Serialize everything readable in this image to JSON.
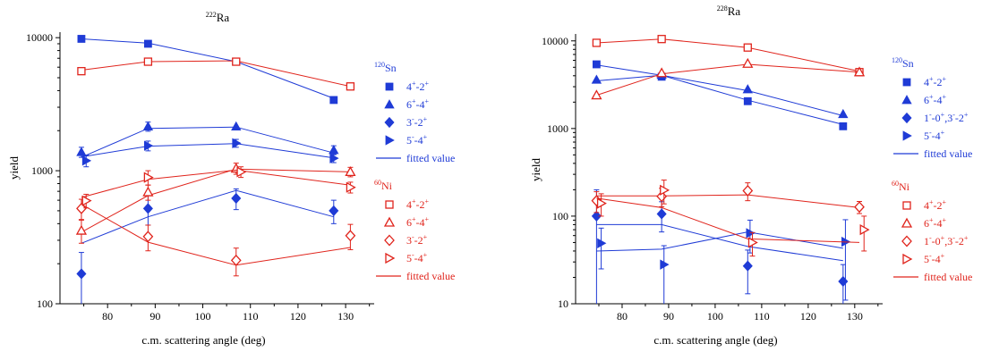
{
  "colors": {
    "blue": "#1f3bd6",
    "red": "#e0241c",
    "axis": "#000000"
  },
  "chart_data": [
    {
      "type": "scatter",
      "title": "222Ra",
      "title_parts": {
        "sup": "222",
        "base": "Ra"
      },
      "xlabel": "c.m. scattering angle (deg)",
      "ylabel": "yield",
      "yscale": "log",
      "xlim": [
        70,
        136
      ],
      "ylim": [
        100,
        11000
      ],
      "xticks": [
        80,
        90,
        100,
        110,
        120,
        130
      ],
      "xtick_labels": [
        "80",
        "90",
        "100",
        "110",
        "120",
        "130"
      ],
      "yticks": [
        100,
        1000,
        10000
      ],
      "ytick_labels": [
        "100",
        "1000",
        "10000"
      ],
      "grid": false,
      "legend_position": "right",
      "legend_groups": [
        {
          "header_sup": "120",
          "header_base": "Sn",
          "color": "blue",
          "entries": [
            {
              "marker": "square-filled",
              "main": "4",
              "s1": "+",
              "mid": "-2",
              "s2": "+",
              "tail": "",
              "s3": ""
            },
            {
              "marker": "triangle-up-filled",
              "main": "6",
              "s1": "+",
              "mid": "-4",
              "s2": "+",
              "tail": "",
              "s3": ""
            },
            {
              "marker": "diamond-filled",
              "main": "3",
              "s1": "-",
              "mid": "-2",
              "s2": "+",
              "tail": "",
              "s3": ""
            },
            {
              "marker": "triangle-right-filled",
              "main": "5",
              "s1": "-",
              "mid": "-4",
              "s2": "+",
              "tail": "",
              "s3": ""
            }
          ],
          "fit_label": "fitted value"
        },
        {
          "header_sup": "60",
          "header_base": "Ni",
          "color": "red",
          "entries": [
            {
              "marker": "square-open",
              "main": "4",
              "s1": "+",
              "mid": "-2",
              "s2": "+",
              "tail": "",
              "s3": ""
            },
            {
              "marker": "triangle-up-open",
              "main": "6",
              "s1": "+",
              "mid": "-4",
              "s2": "+",
              "tail": "",
              "s3": ""
            },
            {
              "marker": "diamond-open",
              "main": "3",
              "s1": "-",
              "mid": "-2",
              "s2": "+",
              "tail": "",
              "s3": ""
            },
            {
              "marker": "triangle-right-open",
              "main": "5",
              "s1": "-",
              "mid": "-4",
              "s2": "+",
              "tail": "",
              "s3": ""
            }
          ],
          "fit_label": "fitted value"
        }
      ],
      "series": [
        {
          "group": "120Sn",
          "transition": "4+-2+",
          "color": "blue",
          "marker": "square-filled",
          "points": [
            {
              "x": 74.5,
              "y": 9800
            },
            {
              "x": 88.5,
              "y": 9000
            },
            {
              "x": 107,
              "y": 6600
            },
            {
              "x": 127.5,
              "y": 3400
            }
          ],
          "fit": [
            [
              74.5,
              9800
            ],
            [
              88.5,
              9100
            ],
            [
              107,
              6600
            ],
            [
              127.5,
              3500
            ]
          ]
        },
        {
          "group": "120Sn",
          "transition": "6+-4+",
          "color": "blue",
          "marker": "triangle-up-filled",
          "points": [
            {
              "x": 74.5,
              "y": 1380,
              "err": 120
            },
            {
              "x": 88.5,
              "y": 2150,
              "err": 170
            },
            {
              "x": 107,
              "y": 2150
            },
            {
              "x": 127.5,
              "y": 1430,
              "err": 110
            }
          ],
          "fit": [
            [
              74.5,
              1260
            ],
            [
              88.5,
              2080
            ],
            [
              107,
              2130
            ],
            [
              127.5,
              1360
            ]
          ]
        },
        {
          "group": "120Sn",
          "transition": "3--2+",
          "color": "blue",
          "marker": "diamond-filled",
          "points": [
            {
              "x": 74.5,
              "y": 168,
              "err": 75
            },
            {
              "x": 88.5,
              "y": 520,
              "err": 130
            },
            {
              "x": 107,
              "y": 620,
              "err": 110
            },
            {
              "x": 127.5,
              "y": 500,
              "err": 100
            }
          ],
          "fit": [
            [
              74.5,
              285
            ],
            [
              88.5,
              450
            ],
            [
              107,
              710
            ],
            [
              127.5,
              450
            ]
          ]
        },
        {
          "group": "120Sn",
          "transition": "5--4+",
          "color": "blue",
          "marker": "triangle-right-filled",
          "points": [
            {
              "x": 75.5,
              "y": 1190,
              "err": 120
            },
            {
              "x": 88.5,
              "y": 1540,
              "err": 130
            },
            {
              "x": 107,
              "y": 1610,
              "err": 110
            },
            {
              "x": 127.5,
              "y": 1240,
              "err": 90
            }
          ],
          "fit": [
            [
              74.5,
              1270
            ],
            [
              88.5,
              1530
            ],
            [
              107,
              1600
            ],
            [
              127.5,
              1250
            ]
          ]
        },
        {
          "group": "60Ni",
          "transition": "4+-2+",
          "color": "red",
          "marker": "square-open",
          "points": [
            {
              "x": 74.5,
              "y": 5600
            },
            {
              "x": 88.5,
              "y": 6600
            },
            {
              "x": 107,
              "y": 6600
            },
            {
              "x": 131,
              "y": 4300
            }
          ],
          "fit": [
            [
              74.5,
              5700
            ],
            [
              88.5,
              6600
            ],
            [
              107,
              6700
            ],
            [
              131,
              4300
            ]
          ]
        },
        {
          "group": "60Ni",
          "transition": "6+-4+",
          "color": "red",
          "marker": "triangle-up-open",
          "points": [
            {
              "x": 74.5,
              "y": 355,
              "err": 70
            },
            {
              "x": 88.5,
              "y": 690,
              "err": 90
            },
            {
              "x": 107,
              "y": 1040,
              "err": 100
            },
            {
              "x": 131,
              "y": 980,
              "err": 80
            }
          ],
          "fit": [
            [
              74.5,
              345
            ],
            [
              88.5,
              650
            ],
            [
              107,
              1030
            ],
            [
              131,
              980
            ]
          ]
        },
        {
          "group": "60Ni",
          "transition": "3--2+",
          "color": "red",
          "marker": "diamond-open",
          "points": [
            {
              "x": 74.5,
              "y": 520,
              "err": 90
            },
            {
              "x": 88.5,
              "y": 320,
              "err": 70
            },
            {
              "x": 107,
              "y": 212,
              "err": 50
            },
            {
              "x": 131,
              "y": 325,
              "err": 70
            }
          ],
          "fit": [
            [
              74.5,
              560
            ],
            [
              88.5,
              290
            ],
            [
              107,
              195
            ],
            [
              131,
              265
            ]
          ]
        },
        {
          "group": "60Ni",
          "transition": "5--4+",
          "color": "red",
          "marker": "triangle-right-open",
          "points": [
            {
              "x": 75.5,
              "y": 595,
              "err": 70
            },
            {
              "x": 88.5,
              "y": 890,
              "err": 110
            },
            {
              "x": 108,
              "y": 980,
              "err": 90
            },
            {
              "x": 131,
              "y": 750,
              "err": 70
            }
          ],
          "fit": [
            [
              74.5,
              630
            ],
            [
              88.5,
              860
            ],
            [
              107,
              1010
            ],
            [
              131,
              780
            ]
          ]
        }
      ]
    },
    {
      "type": "scatter",
      "title": "228Ra",
      "title_parts": {
        "sup": "228",
        "base": "Ra"
      },
      "xlabel": "c.m. scattering angle (deg)",
      "ylabel": "yield",
      "yscale": "log",
      "xlim": [
        70,
        136
      ],
      "ylim": [
        10,
        12000
      ],
      "xticks": [
        80,
        90,
        100,
        110,
        120,
        130
      ],
      "xtick_labels": [
        "80",
        "90",
        "100",
        "110",
        "120",
        "130"
      ],
      "yticks": [
        10,
        100,
        1000,
        10000
      ],
      "ytick_labels": [
        "10",
        "100",
        "1000",
        "10000"
      ],
      "grid": false,
      "legend_position": "right",
      "legend_groups": [
        {
          "header_sup": "120",
          "header_base": "Sn",
          "color": "blue",
          "entries": [
            {
              "marker": "square-filled",
              "main": "4",
              "s1": "+",
              "mid": "-2",
              "s2": "+",
              "tail": "",
              "s3": ""
            },
            {
              "marker": "triangle-up-filled",
              "main": "6",
              "s1": "+",
              "mid": "-4",
              "s2": "+",
              "tail": "",
              "s3": ""
            },
            {
              "marker": "diamond-filled",
              "main": "1",
              "s1": "-",
              "mid": "-0",
              "s2": "+",
              "tail": ",3",
              "s3": "-",
              "tail2": "-2",
              "s4": "+"
            },
            {
              "marker": "triangle-right-filled",
              "main": "5",
              "s1": "-",
              "mid": "-4",
              "s2": "+",
              "tail": "",
              "s3": ""
            }
          ],
          "fit_label": "fitted value"
        },
        {
          "header_sup": "60",
          "header_base": "Ni",
          "color": "red",
          "entries": [
            {
              "marker": "square-open",
              "main": "4",
              "s1": "+",
              "mid": "-2",
              "s2": "+",
              "tail": "",
              "s3": ""
            },
            {
              "marker": "triangle-up-open",
              "main": "6",
              "s1": "+",
              "mid": "-4",
              "s2": "+",
              "tail": "",
              "s3": ""
            },
            {
              "marker": "diamond-open",
              "main": "1",
              "s1": "-",
              "mid": "-0",
              "s2": "+",
              "tail": ",3",
              "s3": "-",
              "tail2": "-2",
              "s4": "+"
            },
            {
              "marker": "triangle-right-open",
              "main": "5",
              "s1": "-",
              "mid": "-4",
              "s2": "+",
              "tail": "",
              "s3": ""
            }
          ],
          "fit_label": "fitted value"
        }
      ],
      "series": [
        {
          "group": "120Sn",
          "transition": "4+-2+",
          "color": "blue",
          "marker": "square-filled",
          "points": [
            {
              "x": 74.5,
              "y": 5400
            },
            {
              "x": 88.5,
              "y": 3900
            },
            {
              "x": 107,
              "y": 2050
            },
            {
              "x": 127.5,
              "y": 1060
            }
          ],
          "fit": [
            [
              74.5,
              5300
            ],
            [
              88.5,
              4050
            ],
            [
              107,
              2100
            ],
            [
              127.5,
              1110
            ]
          ]
        },
        {
          "group": "120Sn",
          "transition": "6+-4+",
          "color": "blue",
          "marker": "triangle-up-filled",
          "points": [
            {
              "x": 74.5,
              "y": 3600
            },
            {
              "x": 88.5,
              "y": 4100
            },
            {
              "x": 107,
              "y": 2800
            },
            {
              "x": 127.5,
              "y": 1460
            }
          ],
          "fit": [
            [
              74.5,
              3500
            ],
            [
              88.5,
              4050
            ],
            [
              107,
              2700
            ],
            [
              127.5,
              1400
            ]
          ]
        },
        {
          "group": "120Sn",
          "transition": "1--0+,3--2+",
          "color": "blue",
          "marker": "diamond-filled",
          "points": [
            {
              "x": 74.5,
              "y": 100,
              "err": 100
            },
            {
              "x": 88.5,
              "y": 106,
              "err": 40
            },
            {
              "x": 107,
              "y": 27,
              "err": 14
            },
            {
              "x": 127.5,
              "y": 18,
              "err": 10
            }
          ],
          "fit": [
            [
              74.5,
              80
            ],
            [
              88.5,
              80
            ],
            [
              107,
              45
            ],
            [
              127.5,
              31
            ]
          ]
        },
        {
          "group": "120Sn",
          "transition": "5--4+",
          "color": "blue",
          "marker": "triangle-right-filled",
          "points": [
            {
              "x": 75.5,
              "y": 49,
              "err": 24
            },
            {
              "x": 89,
              "y": 28,
              "err": 18
            },
            {
              "x": 107.5,
              "y": 64,
              "err": 26
            },
            {
              "x": 128,
              "y": 51,
              "err": 40
            }
          ],
          "fit": [
            [
              74.5,
              40
            ],
            [
              88.5,
              42
            ],
            [
              107,
              66
            ],
            [
              127.5,
              43
            ]
          ]
        },
        {
          "group": "60Ni",
          "transition": "4+-2+",
          "color": "red",
          "marker": "square-open",
          "points": [
            {
              "x": 74.5,
              "y": 9500
            },
            {
              "x": 88.5,
              "y": 10500
            },
            {
              "x": 107,
              "y": 8400
            },
            {
              "x": 131,
              "y": 4400
            }
          ],
          "fit": [
            [
              74.5,
              9500
            ],
            [
              88.5,
              10500
            ],
            [
              107,
              8400
            ],
            [
              131,
              4500
            ]
          ]
        },
        {
          "group": "60Ni",
          "transition": "6+-4+",
          "color": "red",
          "marker": "triangle-up-open",
          "points": [
            {
              "x": 74.5,
              "y": 2400
            },
            {
              "x": 88.5,
              "y": 4300
            },
            {
              "x": 107,
              "y": 5500
            },
            {
              "x": 131,
              "y": 4400
            }
          ],
          "fit": [
            [
              74.5,
              2400
            ],
            [
              88.5,
              4200
            ],
            [
              107,
              5400
            ],
            [
              131,
              4400
            ]
          ]
        },
        {
          "group": "60Ni",
          "transition": "1--0+,3--2+",
          "color": "red",
          "marker": "diamond-open",
          "points": [
            {
              "x": 74.5,
              "y": 150,
              "err": 40
            },
            {
              "x": 88.5,
              "y": 168,
              "err": 40
            },
            {
              "x": 107,
              "y": 195,
              "err": 45
            },
            {
              "x": 131,
              "y": 127,
              "err": 20
            }
          ],
          "fit": [
            [
              74.5,
              170
            ],
            [
              88.5,
              170
            ],
            [
              107,
              175
            ],
            [
              131,
              125
            ]
          ]
        },
        {
          "group": "60Ni",
          "transition": "5--4+",
          "color": "red",
          "marker": "triangle-right-open",
          "points": [
            {
              "x": 75.5,
              "y": 140,
              "err": 40
            },
            {
              "x": 89,
              "y": 198,
              "err": 60
            },
            {
              "x": 108,
              "y": 50,
              "err": 15
            },
            {
              "x": 132,
              "y": 70,
              "err": 30
            }
          ],
          "fit": [
            [
              74.5,
              160
            ],
            [
              88.5,
              125
            ],
            [
              107,
              55
            ],
            [
              131,
              50
            ]
          ]
        }
      ]
    }
  ]
}
